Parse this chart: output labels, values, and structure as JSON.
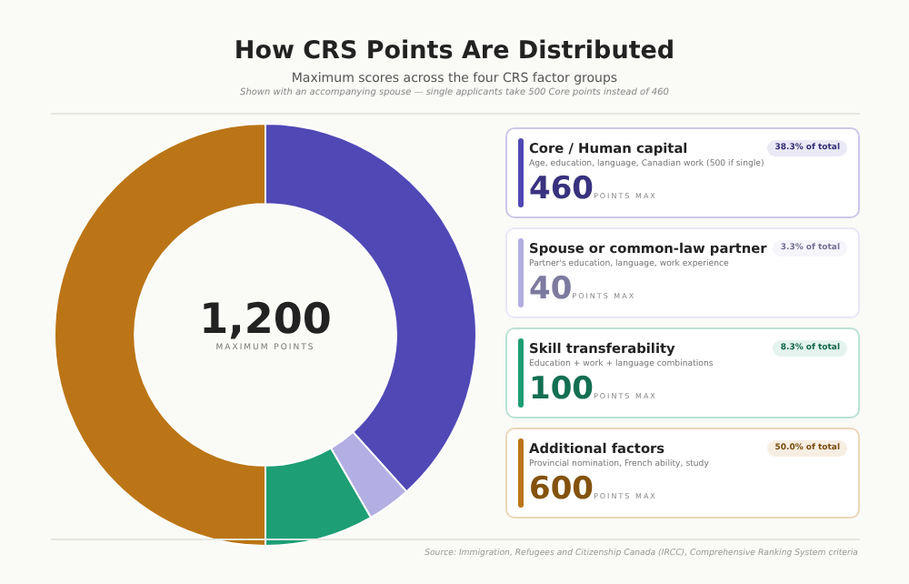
{
  "chart_data": {
    "type": "donut",
    "title": "How CRS Points Are Distributed",
    "subtitle": "Maximum scores across the four CRS factor groups",
    "categories": [
      "Core / Human capital",
      "Spouse or common-law partner",
      "Skill transferability",
      "Additional factors"
    ],
    "values": [
      460,
      40,
      100,
      600
    ],
    "colors": [
      "#5048b5",
      "#b3aee3",
      "#1d9e75",
      "#bb7516"
    ],
    "value_labels": [
      "460",
      "40",
      "100",
      "600"
    ],
    "legend": "right",
    "annotations": [
      "Shown with an accompanying spouse — single applicants take 500 Core points instead of 460",
      "1,200",
      "MAXIMUM POINTS",
      "POINTS MAX",
      "Age, education, language, Canadian work (500 if single)",
      "Partner's education, language, work experience",
      "Education + work + language combinations",
      "Provincial nomination, French ability, study",
      "38.3% of total",
      "3.3% of total",
      "8.3% of total",
      "50.0% of total",
      "Source: Immigration, Refugees and Citizenship Canada (IRCC), Comprehensive Ranking System criteria"
    ]
  }
}
